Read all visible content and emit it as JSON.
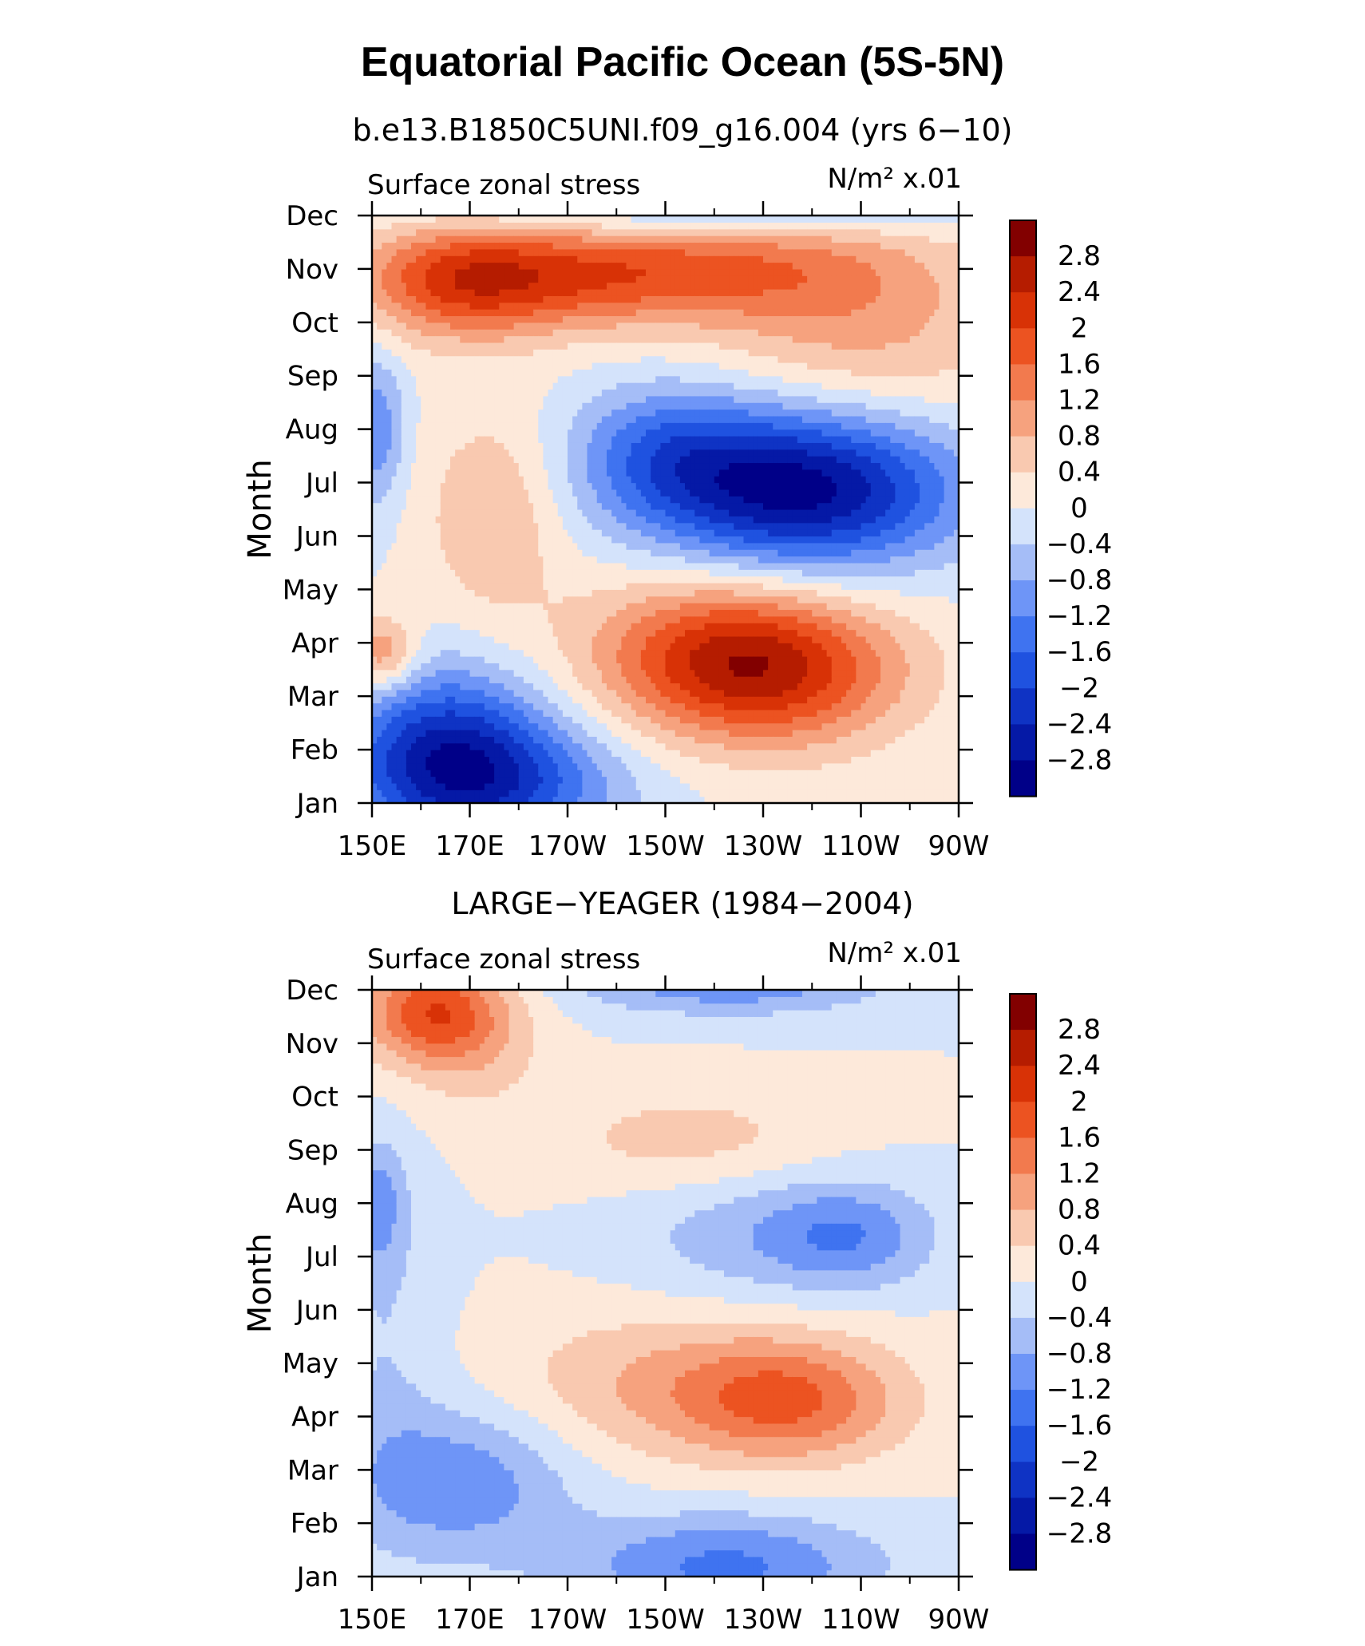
{
  "title": "Equatorial Pacific Ocean (5S-5N)",
  "chart_data": [
    {
      "type": "heatmap",
      "subtitle": "b.e13.B1850C5UNI.f09_g16.004 (yrs 6−10)",
      "left_label": "Surface zonal stress",
      "units": "N/m² x.01",
      "ylabel": "Month",
      "xlabel": "",
      "x_ticks": [
        "150E",
        "170E",
        "170W",
        "150W",
        "130W",
        "110W",
        "90W"
      ],
      "y_ticks": [
        "Jan",
        "Feb",
        "Mar",
        "Apr",
        "May",
        "Jun",
        "Jul",
        "Aug",
        "Sep",
        "Oct",
        "Nov",
        "Dec"
      ],
      "xlim_deg_east": [
        150,
        270
      ],
      "contour_levels": [
        -2.8,
        -2.4,
        -2,
        -1.6,
        -1.2,
        -0.8,
        -0.4,
        0,
        0.4,
        0.8,
        1.2,
        1.6,
        2,
        2.4,
        2.8
      ],
      "features": [
        {
          "lon": 165,
          "month": 1.0,
          "value": -2.2,
          "spread_lon": 15,
          "spread_month": 1.1
        },
        {
          "lon": 178,
          "month": 0.3,
          "value": -1.3,
          "spread_lon": 18,
          "spread_month": 0.8
        },
        {
          "lon": 152,
          "month": 2.8,
          "value": 1.3,
          "spread_lon": 5,
          "spread_month": 0.5
        },
        {
          "lon": 232,
          "month": 2.5,
          "value": 2.2,
          "spread_lon": 19,
          "spread_month": 1.0
        },
        {
          "lon": 215,
          "month": 2.9,
          "value": 1.0,
          "spread_lon": 18,
          "spread_month": 1.0
        },
        {
          "lon": 238,
          "month": 5.9,
          "value": -3.0,
          "spread_lon": 22,
          "spread_month": 1.05
        },
        {
          "lon": 210,
          "month": 6.6,
          "value": -1.1,
          "spread_lon": 14,
          "spread_month": 0.9
        },
        {
          "lon": 151,
          "month": 7.0,
          "value": -1.1,
          "spread_lon": 4,
          "spread_month": 1.0
        },
        {
          "lon": 175,
          "month": 5.4,
          "value": 0.8,
          "spread_lon": 10,
          "spread_month": 1.4
        },
        {
          "lon": 168,
          "month": 9.8,
          "value": 2.0,
          "spread_lon": 15,
          "spread_month": 0.75
        },
        {
          "lon": 195,
          "month": 9.9,
          "value": 1.3,
          "spread_lon": 18,
          "spread_month": 0.7
        },
        {
          "lon": 225,
          "month": 10.0,
          "value": 1.1,
          "spread_lon": 22,
          "spread_month": 0.7
        },
        {
          "lon": 250,
          "month": 9.0,
          "value": 0.9,
          "spread_lon": 22,
          "spread_month": 1.4
        },
        {
          "lon": 220,
          "month": 11.1,
          "value": -0.9,
          "spread_lon": 40,
          "spread_month": 0.35
        }
      ],
      "colorbar_labels": [
        "2.8",
        "2.4",
        "2",
        "1.6",
        "1.2",
        "0.8",
        "0.4",
        "0",
        "−0.4",
        "−0.8",
        "−1.2",
        "−1.6",
        "−2",
        "−2.4",
        "−2.8"
      ]
    },
    {
      "type": "heatmap",
      "subtitle": "LARGE−YEAGER (1984−2004)",
      "left_label": "Surface zonal stress",
      "units": "N/m² x.01",
      "ylabel": "Month",
      "xlabel": "",
      "x_ticks": [
        "150E",
        "170E",
        "170W",
        "150W",
        "130W",
        "110W",
        "90W"
      ],
      "y_ticks": [
        "Jan",
        "Feb",
        "Mar",
        "Apr",
        "May",
        "Jun",
        "Jul",
        "Aug",
        "Sep",
        "Oct",
        "Nov",
        "Dec"
      ],
      "xlim_deg_east": [
        150,
        270
      ],
      "contour_levels": [
        -2.8,
        -2.4,
        -2,
        -1.6,
        -1.2,
        -0.8,
        -0.4,
        0,
        0.4,
        0.8,
        1.2,
        1.6,
        2,
        2.4,
        2.8
      ],
      "features": [
        {
          "lon": 162,
          "month": 10.6,
          "value": 1.8,
          "spread_lon": 10,
          "spread_month": 0.7
        },
        {
          "lon": 172,
          "month": 10.0,
          "value": 0.5,
          "spread_lon": 10,
          "spread_month": 1.0
        },
        {
          "lon": 222,
          "month": 0.2,
          "value": -1.3,
          "spread_lon": 22,
          "spread_month": 0.7
        },
        {
          "lon": 168,
          "month": 1.8,
          "value": -1.1,
          "spread_lon": 16,
          "spread_month": 1.0
        },
        {
          "lon": 153,
          "month": 4.5,
          "value": -0.4,
          "spread_lon": 8,
          "spread_month": 2.4
        },
        {
          "lon": 236,
          "month": 3.3,
          "value": 1.4,
          "spread_lon": 16,
          "spread_month": 0.8
        },
        {
          "lon": 210,
          "month": 3.6,
          "value": 0.8,
          "spread_lon": 24,
          "spread_month": 1.0
        },
        {
          "lon": 248,
          "month": 6.4,
          "value": -1.0,
          "spread_lon": 12,
          "spread_month": 0.7
        },
        {
          "lon": 226,
          "month": 6.4,
          "value": -0.6,
          "spread_lon": 18,
          "spread_month": 0.9
        },
        {
          "lon": 215,
          "month": 8.2,
          "value": 0.6,
          "spread_lon": 20,
          "spread_month": 0.7
        },
        {
          "lon": 223,
          "month": 11.2,
          "value": -1.2,
          "spread_lon": 22,
          "spread_month": 0.45
        },
        {
          "lon": 151,
          "month": 7.0,
          "value": -0.9,
          "spread_lon": 4,
          "spread_month": 0.8
        }
      ],
      "colorbar_labels": [
        "2.8",
        "2.4",
        "2",
        "1.6",
        "1.2",
        "0.8",
        "0.4",
        "0",
        "−0.4",
        "−0.8",
        "−1.2",
        "−1.6",
        "−2",
        "−2.4",
        "−2.8"
      ]
    }
  ],
  "colors": {
    "palette": [
      "#000088",
      "#0519a6",
      "#0f33c4",
      "#1f52e0",
      "#3f73f0",
      "#6e95f7",
      "#a5bdf7",
      "#d4e3fb",
      "#fde9da",
      "#f9c9b0",
      "#f6a27e",
      "#f27a4e",
      "#ec5321",
      "#d83206",
      "#b51c00",
      "#820000"
    ]
  }
}
